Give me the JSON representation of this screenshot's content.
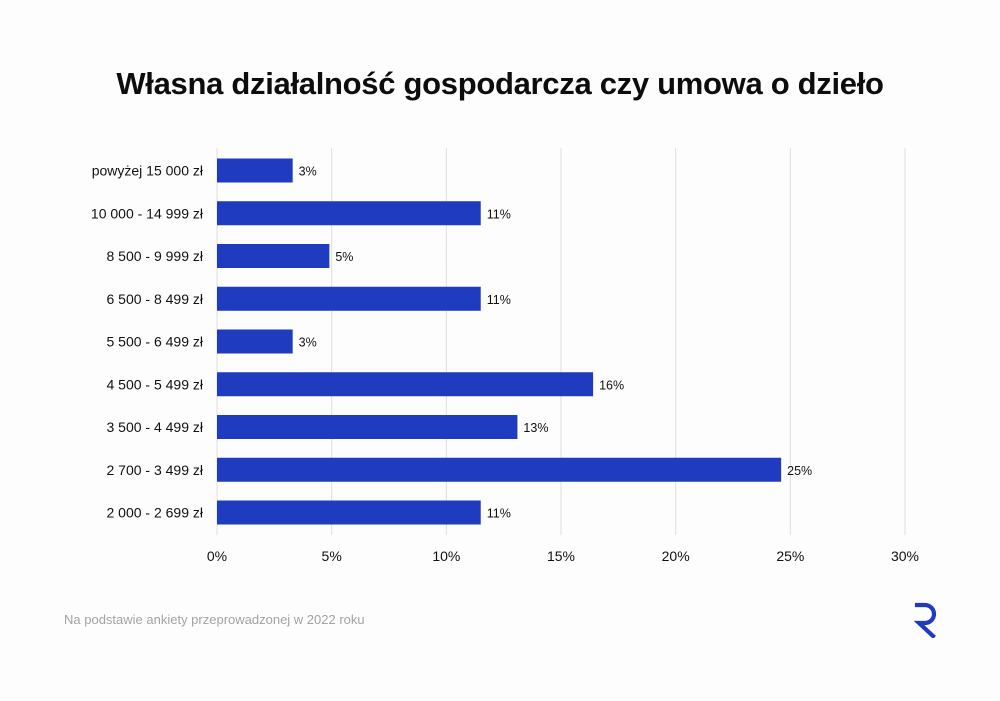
{
  "chart_data": {
    "type": "bar",
    "orientation": "horizontal",
    "title": "Własna działalność gospodarcza czy umowa o dzieło",
    "categories": [
      "powyżej 15 000 zł",
      "10 000 - 14 999 zł",
      "8 500 - 9 999 zł",
      "6 500 - 8 499 zł",
      "5 500 - 6 499 zł",
      "4 500 - 5 499 zł",
      "3 500 - 4 499 zł",
      "2 700 - 3 499 zł",
      "2 000 - 2 699 zł"
    ],
    "values": [
      3.3,
      11.5,
      4.9,
      11.5,
      3.3,
      16.4,
      13.1,
      24.6,
      11.5
    ],
    "data_labels": [
      "3%",
      "11%",
      "5%",
      "11%",
      "3%",
      "16%",
      "13%",
      "25%",
      "11%"
    ],
    "xlim": [
      0,
      30
    ],
    "x_ticks": [
      0,
      5,
      10,
      15,
      20,
      25,
      30
    ],
    "x_tick_labels": [
      "0%",
      "5%",
      "10%",
      "15%",
      "20%",
      "25%",
      "30%"
    ],
    "grid": "vertical",
    "xlabel": "",
    "ylabel": "",
    "bar_color": "#1f3bbf"
  },
  "footnote": "Na podstawie ankiety przeprowadzonej w 2022 roku",
  "logo": {
    "icon": "r-logo-icon",
    "color": "#1f3bbf"
  }
}
